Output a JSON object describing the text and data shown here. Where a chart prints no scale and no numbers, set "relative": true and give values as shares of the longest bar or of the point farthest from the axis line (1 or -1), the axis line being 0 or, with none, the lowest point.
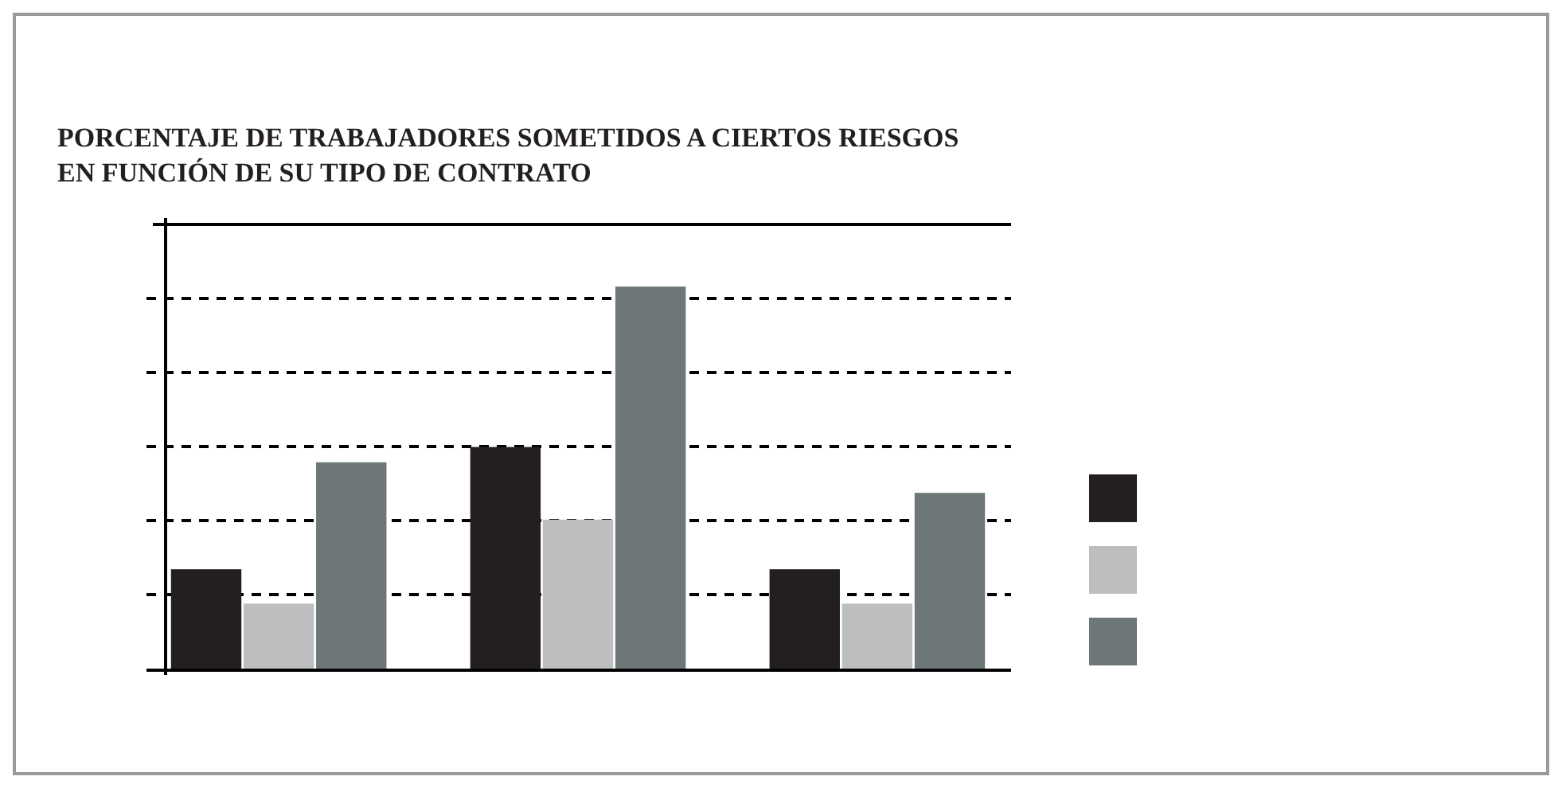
{
  "chart_data": {
    "type": "bar",
    "title": "PORCENTAJE DE TRABAJADORES SOMETIDOS A CIERTOS RIESGOS\nEN FUNCIÓN DE SU TIPO DE CONTRATO",
    "relative": true,
    "categories": [
      null,
      null,
      null
    ],
    "series": [
      {
        "color": "#231f20",
        "values": [
          0.26,
          0.58,
          0.26
        ]
      },
      {
        "color": "#bcbec0",
        "values": [
          0.17,
          0.39,
          0.17
        ]
      },
      {
        "color": "#6d7778",
        "values": [
          0.54,
          1,
          0.46
        ]
      }
    ],
    "grid": "y"
  }
}
